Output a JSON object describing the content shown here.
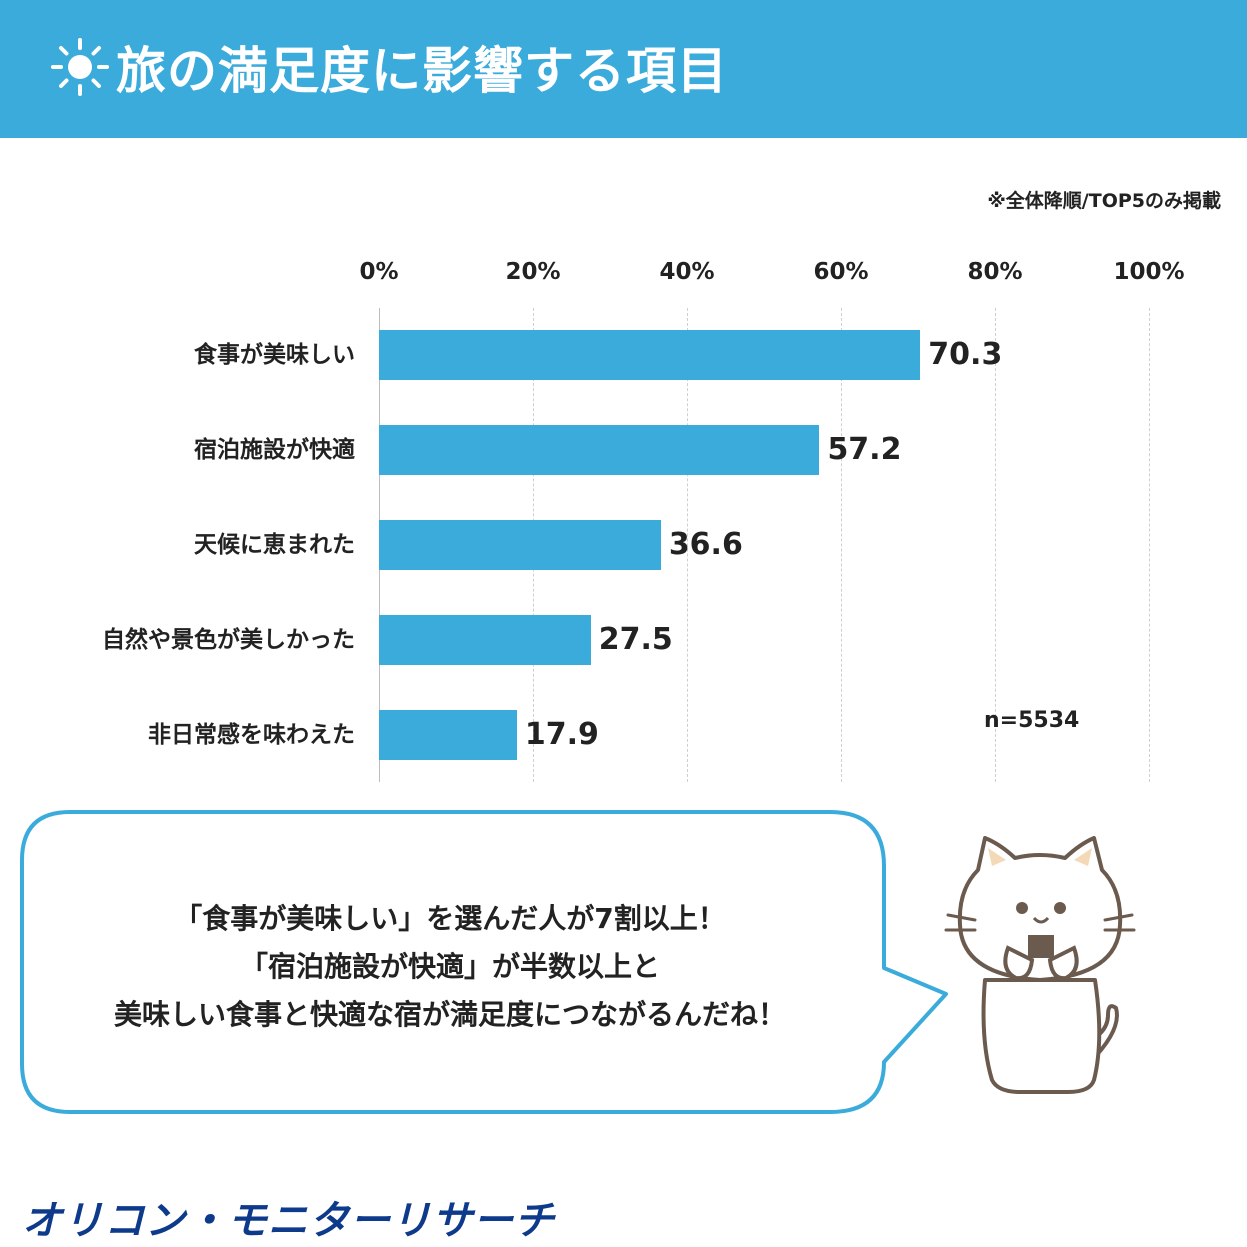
{
  "header": {
    "title": "旅の満足度に影響する項目",
    "icon": "sun-icon"
  },
  "note": "※全体降順/TOP5のみ掲載",
  "chart_data": {
    "type": "bar",
    "orientation": "horizontal",
    "title": "旅の満足度に影響する項目",
    "categories": [
      "食事が美味しい",
      "宿泊施設が快適",
      "天候に恵まれた",
      "自然や景色が美しかった",
      "非日常感を味わえた"
    ],
    "values": [
      70.3,
      57.2,
      36.6,
      27.5,
      17.9
    ],
    "value_labels": [
      "70.3",
      "57.2",
      "36.6",
      "27.5",
      "17.9"
    ],
    "xlim": [
      0,
      100
    ],
    "ticks": [
      "0%",
      "20%",
      "40%",
      "60%",
      "80%",
      "100%"
    ],
    "grid": true,
    "bar_color": "#3aabdb",
    "n_label": "n=5534"
  },
  "bubble": {
    "lines": [
      "「食事が美味しい」を選んだ人が7割以上！",
      "「宿泊施設が快適」が半数以上と",
      "美味しい食事と快適な宿が満足度につながるんだね！"
    ]
  },
  "footer": {
    "logo": "オリコン・モニターリサーチ"
  },
  "colors": {
    "accent": "#3aabdb",
    "logo": "#0e3a8c"
  }
}
